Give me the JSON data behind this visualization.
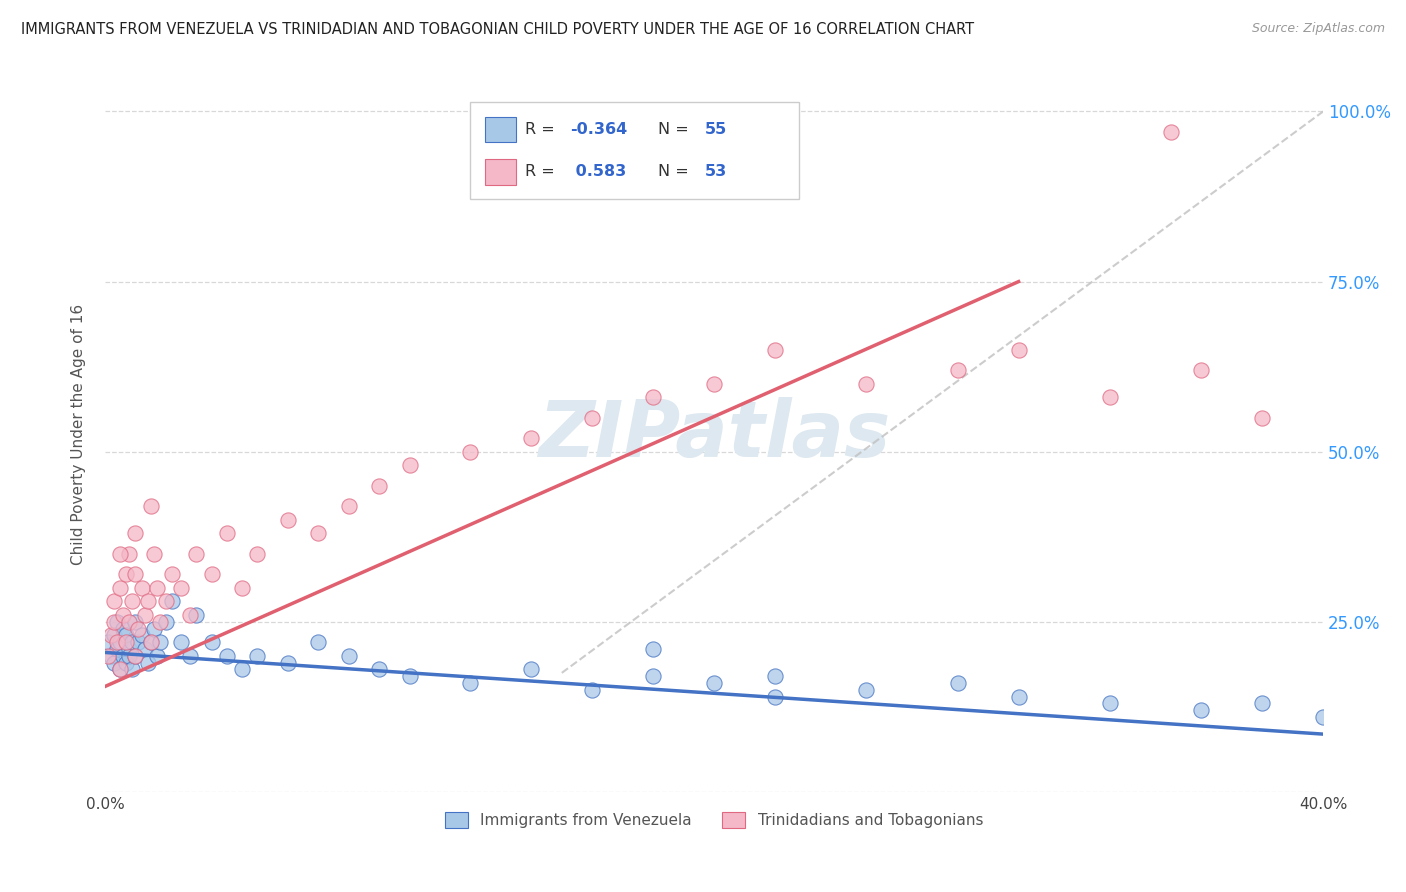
{
  "title": "IMMIGRANTS FROM VENEZUELA VS TRINIDADIAN AND TOBAGONIAN CHILD POVERTY UNDER THE AGE OF 16 CORRELATION CHART",
  "source": "Source: ZipAtlas.com",
  "ylabel": "Child Poverty Under the Age of 16",
  "xlim": [
    0.0,
    0.4
  ],
  "ylim": [
    0.0,
    1.05
  ],
  "ytick_vals": [
    0.0,
    0.25,
    0.5,
    0.75,
    1.0
  ],
  "ytick_labels": [
    "",
    "25.0%",
    "50.0%",
    "75.0%",
    "100.0%"
  ],
  "blue_color": "#a8c8e8",
  "blue_edge_color": "#4472c4",
  "pink_color": "#f4b8c8",
  "pink_edge_color": "#e06880",
  "blue_line_color": "#4472c4",
  "pink_line_color": "#e06070",
  "gray_line_color": "#c0c0c0",
  "grid_color": "#d8d8d8",
  "background_color": "#ffffff",
  "watermark_color": "#dde8f0",
  "legend_labels": [
    "Immigrants from Venezuela",
    "Trinidadians and Tobagonians"
  ],
  "blue_R": "-0.364",
  "blue_N": "55",
  "pink_R": "0.583",
  "pink_N": "53",
  "blue_x": [
    0.001,
    0.002,
    0.003,
    0.003,
    0.004,
    0.004,
    0.005,
    0.005,
    0.006,
    0.006,
    0.007,
    0.007,
    0.008,
    0.008,
    0.009,
    0.009,
    0.01,
    0.01,
    0.011,
    0.012,
    0.013,
    0.014,
    0.015,
    0.016,
    0.017,
    0.018,
    0.02,
    0.022,
    0.025,
    0.028,
    0.03,
    0.035,
    0.04,
    0.045,
    0.05,
    0.06,
    0.07,
    0.08,
    0.09,
    0.1,
    0.12,
    0.14,
    0.16,
    0.18,
    0.2,
    0.22,
    0.25,
    0.28,
    0.3,
    0.33,
    0.36,
    0.38,
    0.4,
    0.18,
    0.22
  ],
  "blue_y": [
    0.22,
    0.2,
    0.19,
    0.23,
    0.21,
    0.25,
    0.18,
    0.22,
    0.2,
    0.24,
    0.19,
    0.23,
    0.21,
    0.2,
    0.22,
    0.18,
    0.25,
    0.2,
    0.22,
    0.23,
    0.21,
    0.19,
    0.22,
    0.24,
    0.2,
    0.22,
    0.25,
    0.28,
    0.22,
    0.2,
    0.26,
    0.22,
    0.2,
    0.18,
    0.2,
    0.19,
    0.22,
    0.2,
    0.18,
    0.17,
    0.16,
    0.18,
    0.15,
    0.17,
    0.16,
    0.14,
    0.15,
    0.16,
    0.14,
    0.13,
    0.12,
    0.13,
    0.11,
    0.21,
    0.17
  ],
  "pink_x": [
    0.001,
    0.002,
    0.003,
    0.003,
    0.004,
    0.005,
    0.005,
    0.006,
    0.007,
    0.007,
    0.008,
    0.008,
    0.009,
    0.01,
    0.01,
    0.011,
    0.012,
    0.013,
    0.014,
    0.015,
    0.016,
    0.017,
    0.018,
    0.02,
    0.022,
    0.025,
    0.028,
    0.03,
    0.035,
    0.04,
    0.045,
    0.05,
    0.06,
    0.07,
    0.08,
    0.09,
    0.1,
    0.12,
    0.14,
    0.16,
    0.18,
    0.2,
    0.22,
    0.25,
    0.28,
    0.3,
    0.33,
    0.36,
    0.38,
    0.005,
    0.01,
    0.015,
    0.35
  ],
  "pink_y": [
    0.2,
    0.23,
    0.25,
    0.28,
    0.22,
    0.3,
    0.18,
    0.26,
    0.32,
    0.22,
    0.35,
    0.25,
    0.28,
    0.2,
    0.32,
    0.24,
    0.3,
    0.26,
    0.28,
    0.22,
    0.35,
    0.3,
    0.25,
    0.28,
    0.32,
    0.3,
    0.26,
    0.35,
    0.32,
    0.38,
    0.3,
    0.35,
    0.4,
    0.38,
    0.42,
    0.45,
    0.48,
    0.5,
    0.52,
    0.55,
    0.58,
    0.6,
    0.65,
    0.6,
    0.62,
    0.65,
    0.58,
    0.62,
    0.55,
    0.35,
    0.38,
    0.42,
    0.97
  ],
  "blue_line_x": [
    0.0,
    0.4
  ],
  "blue_line_y": [
    0.205,
    0.085
  ],
  "pink_line_x": [
    0.0,
    0.3
  ],
  "pink_line_y": [
    0.155,
    0.75
  ],
  "gray_line_x": [
    0.15,
    0.4
  ],
  "gray_line_y": [
    0.175,
    1.0
  ]
}
